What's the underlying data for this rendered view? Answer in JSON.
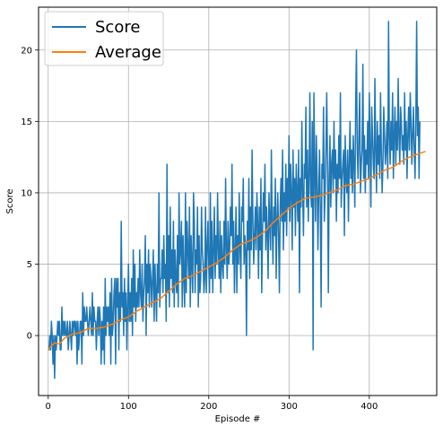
{
  "chart_data": {
    "type": "line",
    "title": "",
    "xlabel": "Episode #",
    "ylabel": "Score",
    "xlim": [
      -12,
      484
    ],
    "ylim": [
      -4.2,
      23
    ],
    "xticks": [
      0,
      100,
      200,
      300,
      400
    ],
    "yticks": [
      0,
      5,
      10,
      15,
      20
    ],
    "grid": true,
    "legend_position": "top-left",
    "series": [
      {
        "name": "Score",
        "color": "#1f77b4",
        "x_start": 0,
        "x_step": 1,
        "values": [
          -1,
          -1,
          0,
          -1,
          1,
          0,
          -2,
          0,
          -3,
          0,
          -1,
          0,
          1,
          0,
          1,
          -1,
          -1,
          2,
          0,
          1,
          0,
          1,
          0,
          0,
          1,
          -1,
          0,
          1,
          0,
          -1,
          1,
          0,
          1,
          1,
          0,
          1,
          -2,
          1,
          -1,
          0,
          1,
          1,
          -2,
          3,
          0,
          2,
          1,
          1,
          2,
          1,
          0,
          1,
          2,
          1,
          0,
          3,
          0,
          2,
          1,
          1,
          -1,
          1,
          2,
          0,
          2,
          1,
          -2,
          1,
          -1,
          2,
          -2,
          4,
          0,
          2,
          1,
          2,
          0,
          3,
          -2,
          4,
          0,
          1,
          3,
          4,
          -2,
          4,
          2,
          4,
          -1,
          3,
          1,
          8,
          2,
          3,
          0,
          4,
          1,
          3,
          -1,
          2,
          5,
          1,
          3,
          1,
          4,
          0,
          6,
          2,
          5,
          1,
          3,
          2,
          4,
          2,
          6,
          3,
          2,
          5,
          1,
          3,
          4,
          7,
          0,
          5,
          3,
          6,
          2,
          5,
          4,
          2,
          4,
          6,
          1,
          5,
          3,
          1,
          5,
          3,
          10,
          2,
          4,
          4,
          6,
          3,
          7,
          4,
          5,
          1,
          12,
          3,
          7,
          2,
          9,
          4,
          6,
          3,
          8,
          2,
          6,
          4,
          3,
          7,
          2,
          10,
          5,
          6,
          8,
          2,
          7,
          4,
          2,
          10,
          3,
          8,
          6,
          4,
          9,
          2,
          7,
          5,
          3,
          10,
          8,
          3,
          6,
          5,
          9,
          2,
          7,
          3,
          4,
          9,
          6,
          5,
          3,
          4,
          9,
          3,
          6,
          8,
          5,
          3,
          10,
          4,
          8,
          3,
          6,
          9,
          4,
          7,
          5,
          10,
          6,
          4,
          8,
          3,
          7,
          5,
          4,
          8,
          5,
          11,
          6,
          4,
          8,
          5,
          6,
          9,
          7,
          12,
          5,
          8,
          3,
          6,
          9,
          3,
          7,
          5,
          10,
          6,
          4,
          9,
          8,
          11,
          5,
          7,
          6,
          0,
          8,
          6,
          11,
          4,
          9,
          6,
          13,
          8,
          5,
          7,
          9,
          6,
          10,
          8,
          4,
          9,
          6,
          11,
          3,
          7,
          10,
          8,
          12,
          6,
          9,
          7,
          4,
          10,
          8,
          6,
          13,
          8,
          5,
          9,
          7,
          11,
          4,
          8,
          10,
          7,
          3,
          9,
          11,
          8,
          13,
          6,
          10,
          8,
          12,
          7,
          11,
          9,
          14,
          8,
          12,
          10,
          6,
          13,
          9,
          11,
          7,
          12,
          10,
          8,
          13,
          3,
          11,
          9,
          15,
          10,
          7,
          12,
          11,
          16,
          9,
          13,
          8,
          11,
          17,
          10,
          9,
          15,
          -1,
          17,
          12,
          8,
          14,
          11,
          6,
          10,
          13,
          9,
          2,
          12,
          11,
          16,
          8,
          10,
          13,
          17,
          12,
          3,
          11,
          14,
          9,
          12,
          13,
          10,
          15,
          11,
          13,
          8,
          12,
          10,
          14,
          11,
          17,
          9,
          11,
          12,
          13,
          7,
          14,
          11,
          10,
          13,
          8,
          12,
          15,
          11,
          13,
          10,
          14,
          12,
          9,
          16,
          20,
          13,
          11,
          14,
          17,
          10,
          12,
          13,
          19,
          11,
          14,
          10,
          13,
          12,
          15,
          11,
          17,
          13,
          9,
          16,
          14,
          12,
          11,
          18,
          13,
          10,
          15,
          12,
          14,
          11,
          17,
          13,
          10,
          12,
          16,
          14,
          12,
          13,
          15,
          11,
          22,
          14,
          12,
          15,
          13,
          17,
          11,
          14,
          16,
          12,
          15,
          13,
          18,
          14,
          12,
          16,
          15,
          13,
          14,
          12,
          17,
          13,
          15,
          11,
          14,
          16,
          13,
          17,
          15,
          12,
          14,
          16,
          13,
          11,
          15,
          22,
          14,
          16,
          11,
          15
        ]
      },
      {
        "name": "Average",
        "color": "#ff7f0e",
        "points": [
          [
            0,
            -1
          ],
          [
            3,
            -0.8
          ],
          [
            8,
            -0.5
          ],
          [
            14,
            -0.6
          ],
          [
            20,
            -0.2
          ],
          [
            30,
            0.1
          ],
          [
            40,
            0.2
          ],
          [
            50,
            0.5
          ],
          [
            60,
            0.5
          ],
          [
            70,
            0.6
          ],
          [
            80,
            0.8
          ],
          [
            90,
            1.1
          ],
          [
            100,
            1.3
          ],
          [
            110,
            1.7
          ],
          [
            120,
            2.0
          ],
          [
            130,
            2.3
          ],
          [
            140,
            2.6
          ],
          [
            150,
            3.1
          ],
          [
            160,
            3.6
          ],
          [
            170,
            4.0
          ],
          [
            180,
            4.2
          ],
          [
            190,
            4.5
          ],
          [
            200,
            4.8
          ],
          [
            210,
            5.1
          ],
          [
            220,
            5.5
          ],
          [
            230,
            6.0
          ],
          [
            240,
            6.4
          ],
          [
            250,
            6.6
          ],
          [
            260,
            6.9
          ],
          [
            270,
            7.3
          ],
          [
            280,
            7.9
          ],
          [
            290,
            8.4
          ],
          [
            300,
            8.9
          ],
          [
            310,
            9.3
          ],
          [
            320,
            9.6
          ],
          [
            330,
            9.7
          ],
          [
            340,
            9.8
          ],
          [
            350,
            10.0
          ],
          [
            360,
            10.2
          ],
          [
            370,
            10.5
          ],
          [
            380,
            10.6
          ],
          [
            390,
            10.8
          ],
          [
            400,
            11.0
          ],
          [
            410,
            11.3
          ],
          [
            420,
            11.6
          ],
          [
            430,
            11.8
          ],
          [
            440,
            12.2
          ],
          [
            450,
            12.5
          ],
          [
            460,
            12.7
          ],
          [
            470,
            12.9
          ]
        ]
      }
    ]
  }
}
